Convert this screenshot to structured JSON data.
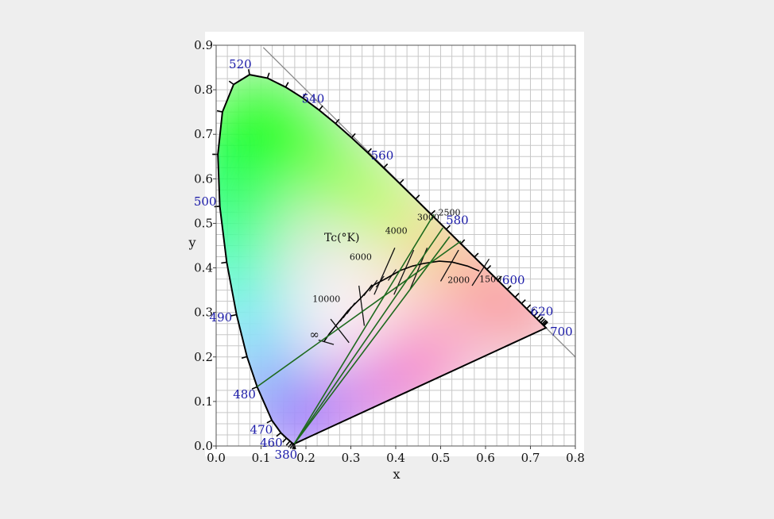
{
  "diagram": {
    "x_axis": {
      "label": "x",
      "min": 0.0,
      "max": 0.8,
      "tick_labels": [
        "0.0",
        "0.1",
        "0.2",
        "0.3",
        "0.4",
        "0.5",
        "0.6",
        "0.7",
        "0.8"
      ]
    },
    "y_axis": {
      "label": "y",
      "min": 0.0,
      "max": 0.9,
      "tick_labels": [
        "0.0",
        "0.1",
        "0.2",
        "0.3",
        "0.4",
        "0.5",
        "0.6",
        "0.7",
        "0.8",
        "0.9"
      ]
    },
    "wavelength_labels": [
      {
        "text": "380",
        "x": 0.174,
        "y": 0.005
      },
      {
        "text": "460",
        "x": 0.144,
        "y": 0.03
      },
      {
        "text": "470",
        "x": 0.124,
        "y": 0.058
      },
      {
        "text": "480",
        "x": 0.091,
        "y": 0.133
      },
      {
        "text": "490",
        "x": 0.045,
        "y": 0.295
      },
      {
        "text": "500",
        "x": 0.008,
        "y": 0.538
      },
      {
        "text": "520",
        "x": 0.074,
        "y": 0.834
      },
      {
        "text": "540",
        "x": 0.23,
        "y": 0.754
      },
      {
        "text": "560",
        "x": 0.373,
        "y": 0.624
      },
      {
        "text": "580",
        "x": 0.512,
        "y": 0.487
      },
      {
        "text": "600",
        "x": 0.627,
        "y": 0.372
      },
      {
        "text": "620",
        "x": 0.691,
        "y": 0.308
      },
      {
        "text": "700",
        "x": 0.735,
        "y": 0.265
      }
    ],
    "tc_label": "Tc(°K)",
    "cct_labels": [
      {
        "text": "10000",
        "x": 0.281,
        "y": 0.288
      },
      {
        "text": "6000",
        "x": 0.322,
        "y": 0.332
      },
      {
        "text": "4000",
        "x": 0.38,
        "y": 0.377
      },
      {
        "text": "3000",
        "x": 0.437,
        "y": 0.404
      },
      {
        "text": "2500",
        "x": 0.477,
        "y": 0.414
      },
      {
        "text": "2000",
        "x": 0.526,
        "y": 0.413
      },
      {
        "text": "1500",
        "x": 0.586,
        "y": 0.393
      },
      {
        "text": "∞",
        "x": 0.24,
        "y": 0.234
      }
    ]
  }
}
